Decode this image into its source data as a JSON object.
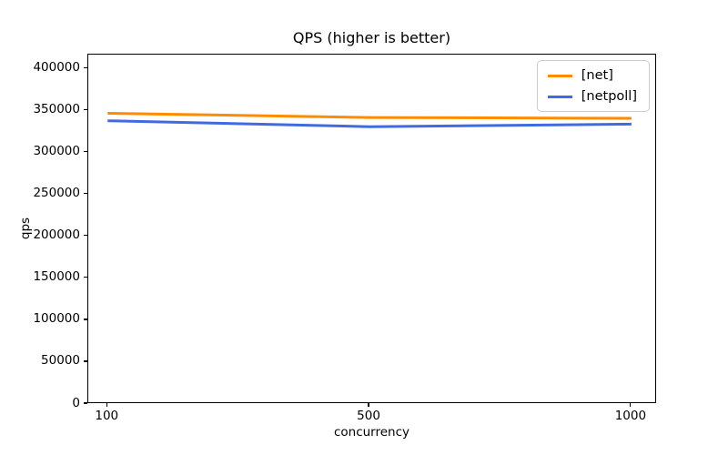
{
  "chart_data": {
    "type": "line",
    "title": "QPS (higher is better)",
    "xlabel": "concurrency",
    "ylabel": "qps",
    "categories": [
      "100",
      "500",
      "1000"
    ],
    "series": [
      {
        "name": "[net]",
        "color": "#ff8c00",
        "values": [
          347000,
          342000,
          341000
        ]
      },
      {
        "name": "[netpoll]",
        "color": "#4169e1",
        "values": [
          338000,
          331000,
          334000
        ]
      }
    ],
    "ylim": [
      0,
      417000
    ],
    "yticks": [
      0,
      50000,
      100000,
      150000,
      200000,
      250000,
      300000,
      350000,
      400000
    ],
    "grid": false,
    "legend_position": "upper right",
    "legend_edge_color": "#cccccc",
    "line_width": 3
  }
}
